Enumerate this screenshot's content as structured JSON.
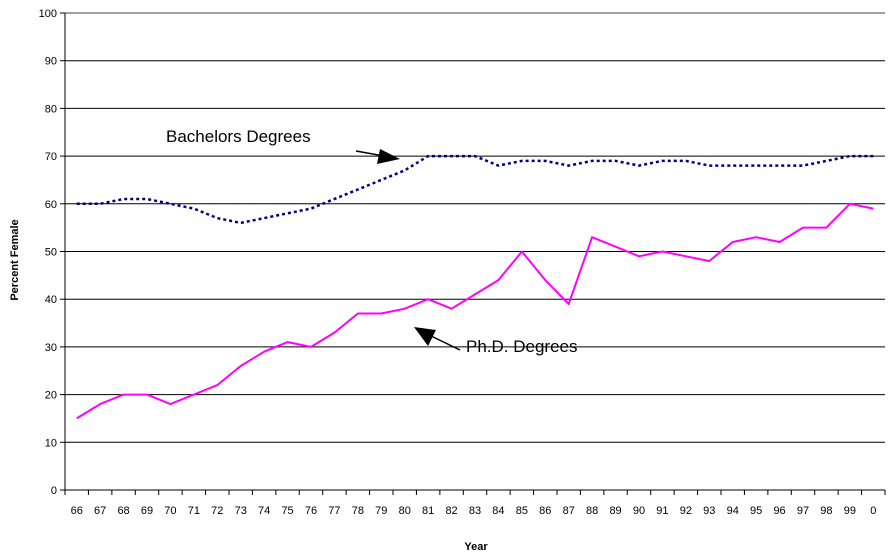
{
  "chart_data": {
    "type": "line",
    "title": "",
    "xlabel": "Year",
    "ylabel": "Percent Female",
    "categories": [
      "66",
      "67",
      "68",
      "69",
      "70",
      "71",
      "72",
      "73",
      "74",
      "75",
      "76",
      "77",
      "78",
      "79",
      "80",
      "81",
      "82",
      "83",
      "84",
      "85",
      "86",
      "87",
      "88",
      "89",
      "90",
      "91",
      "92",
      "93",
      "94",
      "95",
      "96",
      "97",
      "98",
      "99",
      "0"
    ],
    "ylim": [
      0,
      100
    ],
    "yticks": [
      0,
      10,
      20,
      30,
      40,
      50,
      60,
      70,
      80,
      90,
      100
    ],
    "grid": true,
    "legend": "none",
    "series": [
      {
        "name": "Bachelors Degrees",
        "style": "dotted",
        "color": "#000080",
        "values": [
          60,
          60,
          61,
          61,
          60,
          59,
          57,
          56,
          57,
          58,
          59,
          61,
          63,
          65,
          67,
          70,
          70,
          70,
          68,
          69,
          69,
          68,
          69,
          69,
          68,
          69,
          69,
          68,
          68,
          68,
          68,
          68,
          69,
          70,
          70
        ]
      },
      {
        "name": "Ph.D. Degrees",
        "style": "solid",
        "color": "#ff00ff",
        "values": [
          15,
          18,
          20,
          20,
          18,
          20,
          22,
          26,
          29,
          31,
          30,
          33,
          37,
          37,
          38,
          40,
          38,
          41,
          44,
          50,
          44,
          39,
          53,
          51,
          49,
          50,
          49,
          48,
          52,
          53,
          52,
          55,
          55,
          60,
          59
        ]
      }
    ],
    "annotations": [
      {
        "text": "Bachelors Degrees",
        "series": "Bachelors Degrees"
      },
      {
        "text": "Ph.D. Degrees",
        "series": "Ph.D. Degrees"
      }
    ]
  }
}
